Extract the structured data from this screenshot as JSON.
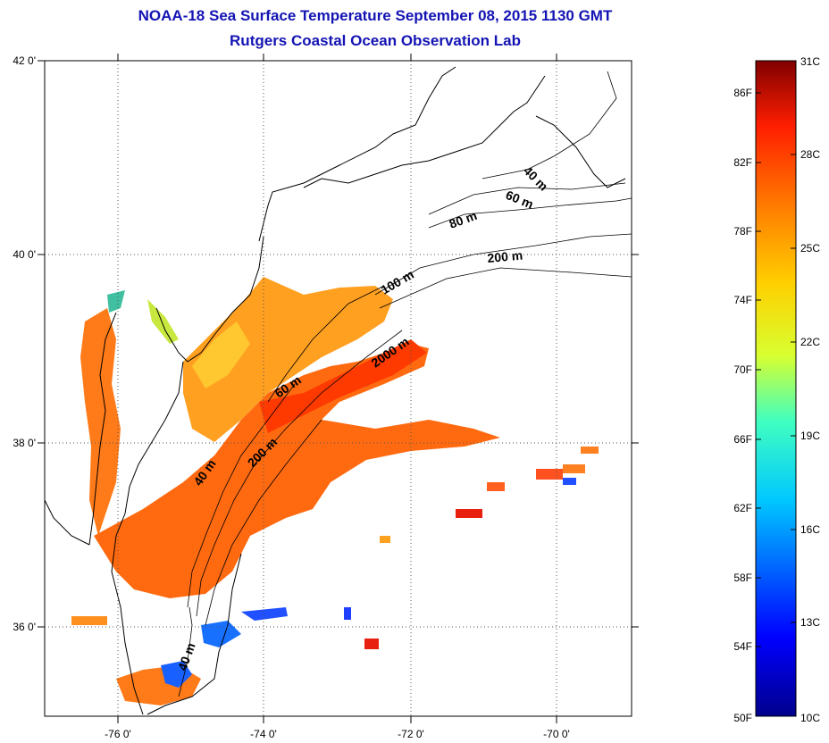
{
  "title_line1": "NOAA-18 Sea Surface Temperature September 08, 2015 1130 GMT",
  "title_line2": "Rutgers Coastal Ocean Observation Lab",
  "map": {
    "lon_ticks": [
      "-76 0'",
      "-74 0'",
      "-72 0'",
      "-70 0'"
    ],
    "lat_ticks": [
      "42 0'",
      "40 0'",
      "38 0'",
      "36 0'"
    ],
    "isobath_labels": [
      "40 m",
      "60 m",
      "80 m",
      "200 m",
      "100 m",
      "2000 m",
      "60 m",
      "200 m",
      "40 m",
      "40 m"
    ]
  },
  "colorbar": {
    "fahrenheit": [
      "86F",
      "82F",
      "78F",
      "74F",
      "70F",
      "66F",
      "62F",
      "58F",
      "54F",
      "50F"
    ],
    "celsius": [
      "31C",
      "28C",
      "25C",
      "22C",
      "19C",
      "16C",
      "13C",
      "10C"
    ]
  }
}
